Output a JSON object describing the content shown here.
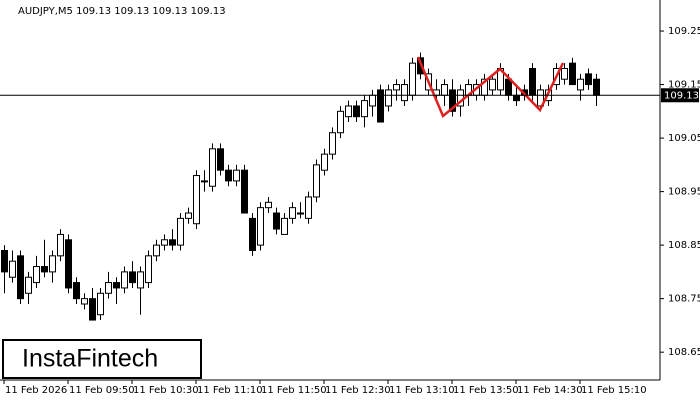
{
  "chart_data": {
    "type": "candlestick",
    "title": "AUDJPY,M5  109.13 109.13 109.13 109.13",
    "categories": [
      "11 Feb 2026",
      null,
      null,
      null,
      null,
      null,
      null,
      null,
      "11 Feb 09:50",
      null,
      null,
      null,
      null,
      null,
      null,
      null,
      "11 Feb 10:30",
      null,
      null,
      null,
      null,
      null,
      null,
      null,
      "11 Feb 11:10",
      null,
      null,
      null,
      null,
      null,
      null,
      null,
      "11 Feb 11:50",
      null,
      null,
      null,
      null,
      null,
      null,
      null,
      "11 Feb 12:30",
      null,
      null,
      null,
      null,
      null,
      null,
      null,
      "11 Feb 13:10",
      null,
      null,
      null,
      null,
      null,
      null,
      null,
      "11 Feb 13:50",
      null,
      null,
      null,
      null,
      null,
      null,
      null,
      "11 Feb 14:30",
      null,
      null,
      null,
      null,
      null,
      null,
      null,
      "11 Feb 15:10",
      null,
      null
    ],
    "open": [
      108.84,
      108.79,
      108.83,
      108.76,
      108.78,
      108.81,
      108.8,
      108.83,
      108.86,
      108.78,
      108.74,
      108.75,
      108.72,
      108.76,
      108.78,
      108.77,
      108.8,
      108.77,
      108.78,
      108.83,
      108.85,
      108.86,
      108.85,
      108.9,
      108.89,
      108.97,
      108.96,
      109.03,
      108.99,
      108.97,
      108.99,
      108.9,
      108.85,
      108.92,
      108.91,
      108.87,
      108.9,
      108.91,
      108.9,
      108.94,
      108.99,
      109.02,
      109.06,
      109.09,
      109.11,
      109.09,
      109.11,
      109.14,
      109.11,
      109.14,
      109.12,
      109.13,
      109.2,
      109.14,
      109.13,
      109.13,
      109.14,
      109.11,
      109.13,
      109.13,
      109.13,
      109.14,
      109.14,
      109.16,
      109.13,
      109.14,
      109.18,
      109.11,
      109.12,
      109.15,
      109.16,
      109.19,
      109.14,
      109.17,
      109.16
    ],
    "high": [
      108.85,
      108.84,
      108.84,
      108.8,
      108.83,
      108.86,
      108.84,
      108.88,
      108.87,
      108.79,
      108.76,
      108.77,
      108.77,
      108.8,
      108.79,
      108.81,
      108.82,
      108.81,
      108.84,
      108.86,
      108.87,
      108.88,
      108.91,
      108.92,
      108.99,
      108.99,
      109.04,
      109.04,
      109.0,
      109.0,
      109.0,
      108.91,
      108.93,
      108.94,
      108.92,
      108.91,
      108.93,
      108.93,
      108.95,
      109.01,
      109.03,
      109.07,
      109.11,
      109.12,
      109.12,
      109.13,
      109.14,
      109.15,
      109.15,
      109.16,
      109.16,
      109.2,
      109.21,
      109.18,
      109.16,
      109.16,
      109.16,
      109.15,
      109.16,
      109.16,
      109.17,
      109.17,
      109.19,
      109.17,
      109.15,
      109.15,
      109.19,
      109.15,
      109.15,
      109.19,
      109.19,
      109.2,
      109.17,
      109.18,
      109.17
    ],
    "low": [
      108.76,
      108.78,
      108.74,
      108.74,
      108.77,
      108.79,
      108.78,
      108.82,
      108.76,
      108.74,
      108.73,
      108.71,
      108.71,
      108.75,
      108.74,
      108.76,
      108.77,
      108.72,
      108.77,
      108.82,
      108.84,
      108.84,
      108.84,
      108.89,
      108.88,
      108.95,
      108.95,
      108.98,
      108.96,
      108.96,
      108.91,
      108.83,
      108.84,
      108.91,
      108.87,
      108.87,
      108.89,
      108.9,
      108.89,
      108.93,
      108.98,
      109.01,
      109.05,
      109.08,
      109.08,
      109.07,
      109.09,
      109.08,
      109.1,
      109.12,
      109.11,
      109.12,
      109.16,
      109.13,
      109.12,
      109.11,
      109.09,
      109.09,
      109.11,
      109.12,
      109.12,
      109.13,
      109.13,
      109.12,
      109.11,
      109.12,
      109.12,
      109.1,
      109.11,
      109.14,
      109.15,
      109.15,
      109.12,
      109.14,
      109.11
    ],
    "close": [
      108.8,
      108.82,
      108.75,
      108.79,
      108.81,
      108.8,
      108.83,
      108.87,
      108.77,
      108.75,
      108.75,
      108.71,
      108.76,
      108.78,
      108.77,
      108.8,
      108.78,
      108.8,
      108.83,
      108.85,
      108.86,
      108.85,
      108.9,
      108.91,
      108.98,
      108.97,
      109.03,
      108.99,
      108.97,
      108.99,
      108.91,
      108.84,
      108.92,
      108.93,
      108.88,
      108.9,
      108.92,
      108.91,
      108.94,
      109.0,
      109.02,
      109.06,
      109.1,
      109.11,
      109.09,
      109.12,
      109.13,
      109.08,
      109.14,
      109.15,
      109.15,
      109.19,
      109.17,
      109.17,
      109.14,
      109.15,
      109.1,
      109.14,
      109.15,
      109.15,
      109.16,
      109.16,
      109.18,
      109.13,
      109.12,
      109.13,
      109.13,
      109.14,
      109.14,
      109.18,
      109.18,
      109.15,
      109.16,
      109.15,
      109.13
    ],
    "up_color": "#ffffff",
    "down_color": "#000000",
    "edge_color": "#000000",
    "ylim": [
      108.598,
      109.308
    ],
    "yticks": [
      108.65,
      108.75,
      108.85,
      108.95,
      109.05,
      109.15,
      109.25
    ],
    "current_price": 109.13
  },
  "logo": "InstaFintech"
}
